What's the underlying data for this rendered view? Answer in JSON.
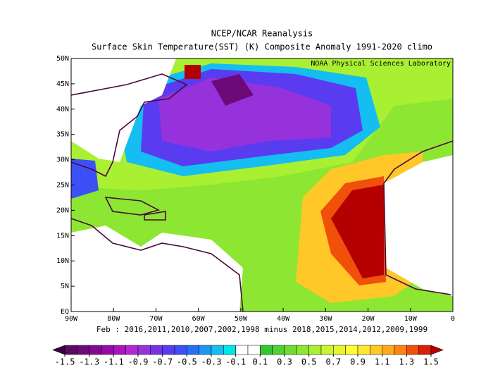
{
  "header": {
    "title": "NCEP/NCAR Reanalysis",
    "subtitle": "Surface Skin Temperature(SST) (K) Composite Anomaly 1991-2020 climo",
    "credit": "NOAA Physical Sciences Laboratory",
    "caption": "Feb : 2016,2011,2010,2007,2002,1998 minus 2018,2015,2014,2012,2009,1999"
  },
  "map": {
    "lon_labels": [
      "90W",
      "80W",
      "70W",
      "60W",
      "50W",
      "40W",
      "30W",
      "20W",
      "10W",
      "0"
    ],
    "lat_labels": [
      "EQ",
      "5N",
      "10N",
      "15N",
      "20N",
      "25N",
      "30N",
      "35N",
      "40N",
      "45N",
      "50N"
    ]
  },
  "colorbar": {
    "ticks": [
      -1.5,
      -1.3,
      -1.1,
      -0.9,
      -0.7,
      -0.5,
      -0.3,
      -0.1,
      0.1,
      0.3,
      0.5,
      0.7,
      0.9,
      1.1,
      1.3,
      1.5
    ],
    "colors": [
      "#3a003f",
      "#5a0a60",
      "#6e0a78",
      "#820a90",
      "#960aa8",
      "#aa14be",
      "#b428d2",
      "#9632dc",
      "#7832e6",
      "#5a3cf0",
      "#3c50f5",
      "#2870f0",
      "#1e96f0",
      "#14bef0",
      "#00e6e6",
      "#ffffff",
      "#ffffff",
      "#32c832",
      "#50d232",
      "#6edc32",
      "#8ce632",
      "#aaf032",
      "#c8f532",
      "#e6f532",
      "#ffff32",
      "#ffe632",
      "#ffc828",
      "#ffaa1e",
      "#ff8214",
      "#f0500a",
      "#dc1e0a",
      "#b40000"
    ]
  }
}
